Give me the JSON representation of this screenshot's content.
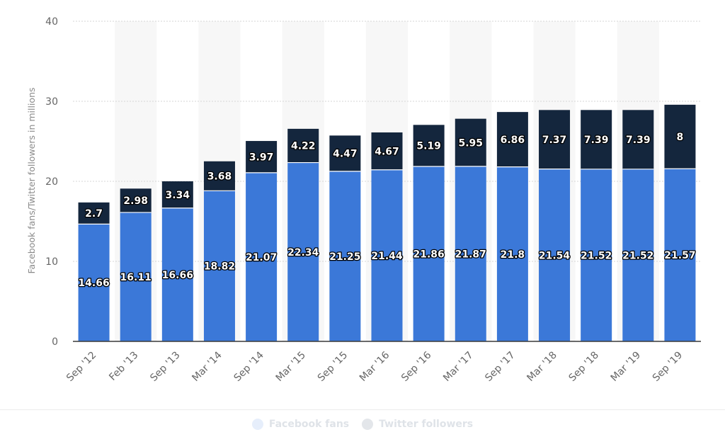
{
  "colors": {
    "facebook": "#3b78d8",
    "twitter": "#14263d",
    "legend_facebook_dot": "#e6eefb",
    "legend_twitter_dot": "#e3e6ea",
    "band": "#f7f7f7",
    "grid": "#d6d6d6",
    "axis": "#3a3a3a"
  },
  "legend": {
    "facebook_label": "Facebook fans",
    "twitter_label": "Twitter followers",
    "placement": "bottom-center"
  },
  "chart_data": {
    "type": "bar",
    "stacked": true,
    "ylabel": "Facebook fans/Twitter followers in millions",
    "xlabel": "",
    "ylim": [
      0,
      40
    ],
    "yticks": [
      0,
      10,
      20,
      30,
      40
    ],
    "grid": true,
    "categories": [
      "Sep '12",
      "Feb '13",
      "Sep '13",
      "Mar '14",
      "Sep '14",
      "Mar '15",
      "Sep '15",
      "Mar '16",
      "Sep '16",
      "Mar '17",
      "Sep '17",
      "Mar '18",
      "Sep '18",
      "Mar '19",
      "Sep '19"
    ],
    "series": [
      {
        "name": "Facebook fans",
        "values": [
          14.66,
          16.11,
          16.66,
          18.82,
          21.07,
          22.34,
          21.25,
          21.44,
          21.86,
          21.87,
          21.8,
          21.54,
          21.52,
          21.52,
          21.57
        ]
      },
      {
        "name": "Twitter followers",
        "values": [
          2.7,
          2.98,
          3.34,
          3.68,
          3.97,
          4.22,
          4.47,
          4.67,
          5.19,
          5.95,
          6.86,
          7.37,
          7.39,
          7.39,
          8
        ]
      }
    ]
  }
}
